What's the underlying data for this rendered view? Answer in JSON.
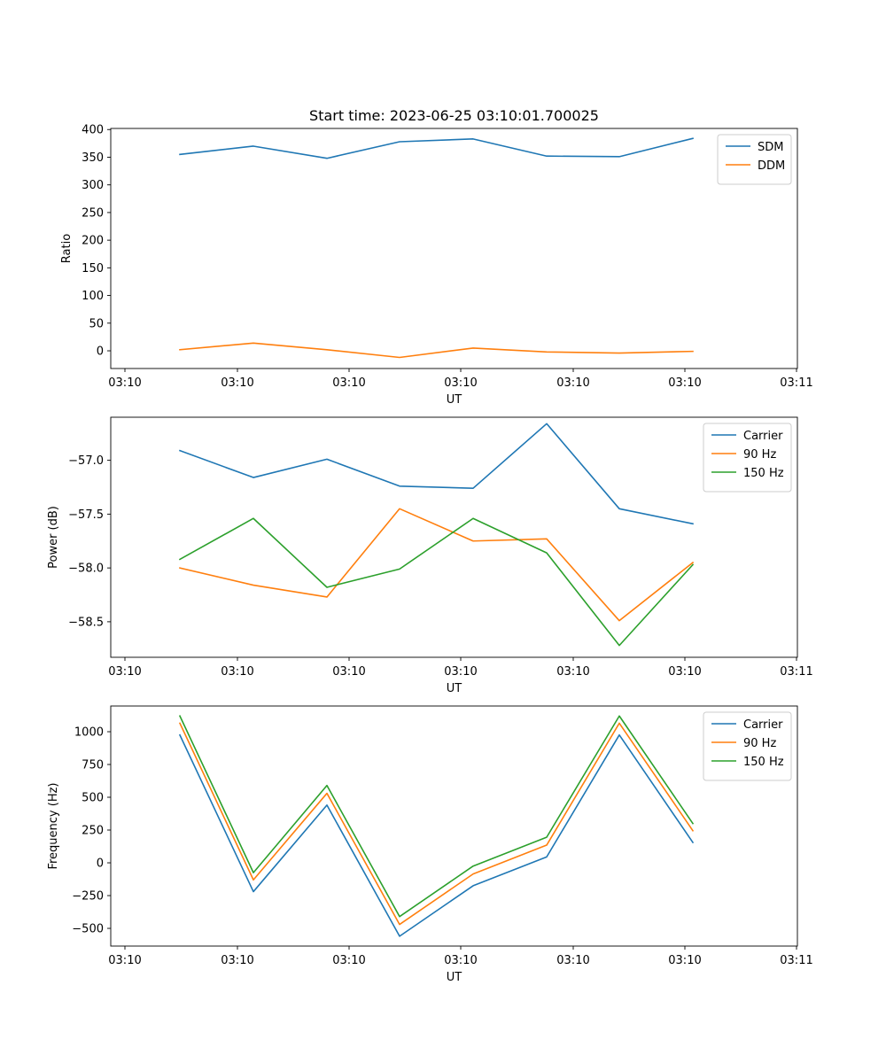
{
  "chart_data": [
    {
      "type": "line",
      "title": "Start time: 2023-06-25 03:10:01.700025",
      "xlabel": "UT",
      "ylabel": "Ratio",
      "x_tick_labels": [
        "03:10",
        "03:10",
        "03:10",
        "03:10",
        "03:10",
        "03:10",
        "03:11"
      ],
      "y_ticks": [
        0,
        50,
        100,
        150,
        200,
        250,
        300,
        350,
        400
      ],
      "y_tick_labels": [
        "0",
        "50",
        "100",
        "150",
        "200",
        "250",
        "300",
        "350",
        "400"
      ],
      "ylim": [
        -32,
        402
      ],
      "legend_position": "top-right",
      "series": [
        {
          "name": "SDM",
          "color": "#1f77b4",
          "values": [
            355,
            370,
            348,
            378,
            383,
            352,
            351,
            384
          ]
        },
        {
          "name": "DDM",
          "color": "#ff7f0e",
          "values": [
            2,
            14,
            2,
            -12,
            5,
            -2,
            -4,
            -1
          ]
        }
      ]
    },
    {
      "type": "line",
      "title": "",
      "xlabel": "UT",
      "ylabel": "Power (dB)",
      "x_tick_labels": [
        "03:10",
        "03:10",
        "03:10",
        "03:10",
        "03:10",
        "03:10",
        "03:11"
      ],
      "y_ticks": [
        -58.5,
        -58.0,
        -57.5,
        -57.0
      ],
      "y_tick_labels": [
        "−58.5",
        "−58.0",
        "−57.5",
        "−57.0"
      ],
      "ylim": [
        -58.83,
        -56.6
      ],
      "legend_position": "top-right",
      "series": [
        {
          "name": "Carrier",
          "color": "#1f77b4",
          "values": [
            -56.91,
            -57.16,
            -56.99,
            -57.24,
            -57.26,
            -56.66,
            -57.45,
            -57.59
          ]
        },
        {
          "name": "90 Hz",
          "color": "#ff7f0e",
          "values": [
            -58.0,
            -58.16,
            -58.27,
            -57.45,
            -57.75,
            -57.73,
            -58.49,
            -57.95
          ]
        },
        {
          "name": "150 Hz",
          "color": "#2ca02c",
          "values": [
            -57.92,
            -57.54,
            -58.18,
            -58.01,
            -57.54,
            -57.86,
            -58.72,
            -57.97
          ]
        }
      ]
    },
    {
      "type": "line",
      "title": "",
      "xlabel": "UT",
      "ylabel": "Frequency (Hz)",
      "x_tick_labels": [
        "03:10",
        "03:10",
        "03:10",
        "03:10",
        "03:10",
        "03:10",
        "03:11"
      ],
      "y_ticks": [
        -500,
        -250,
        0,
        250,
        500,
        750,
        1000
      ],
      "y_tick_labels": [
        "−500",
        "−250",
        "0",
        "250",
        "500",
        "750",
        "1000"
      ],
      "ylim": [
        -635,
        1196
      ],
      "legend_position": "top-right",
      "series": [
        {
          "name": "Carrier",
          "color": "#1f77b4",
          "values": [
            975,
            -220,
            440,
            -560,
            -175,
            45,
            975,
            155
          ]
        },
        {
          "name": "90 Hz",
          "color": "#ff7f0e",
          "values": [
            1065,
            -130,
            530,
            -470,
            -85,
            135,
            1065,
            245
          ]
        },
        {
          "name": "150 Hz",
          "color": "#2ca02c",
          "values": [
            1120,
            -75,
            590,
            -410,
            -25,
            195,
            1120,
            300
          ]
        }
      ]
    }
  ]
}
